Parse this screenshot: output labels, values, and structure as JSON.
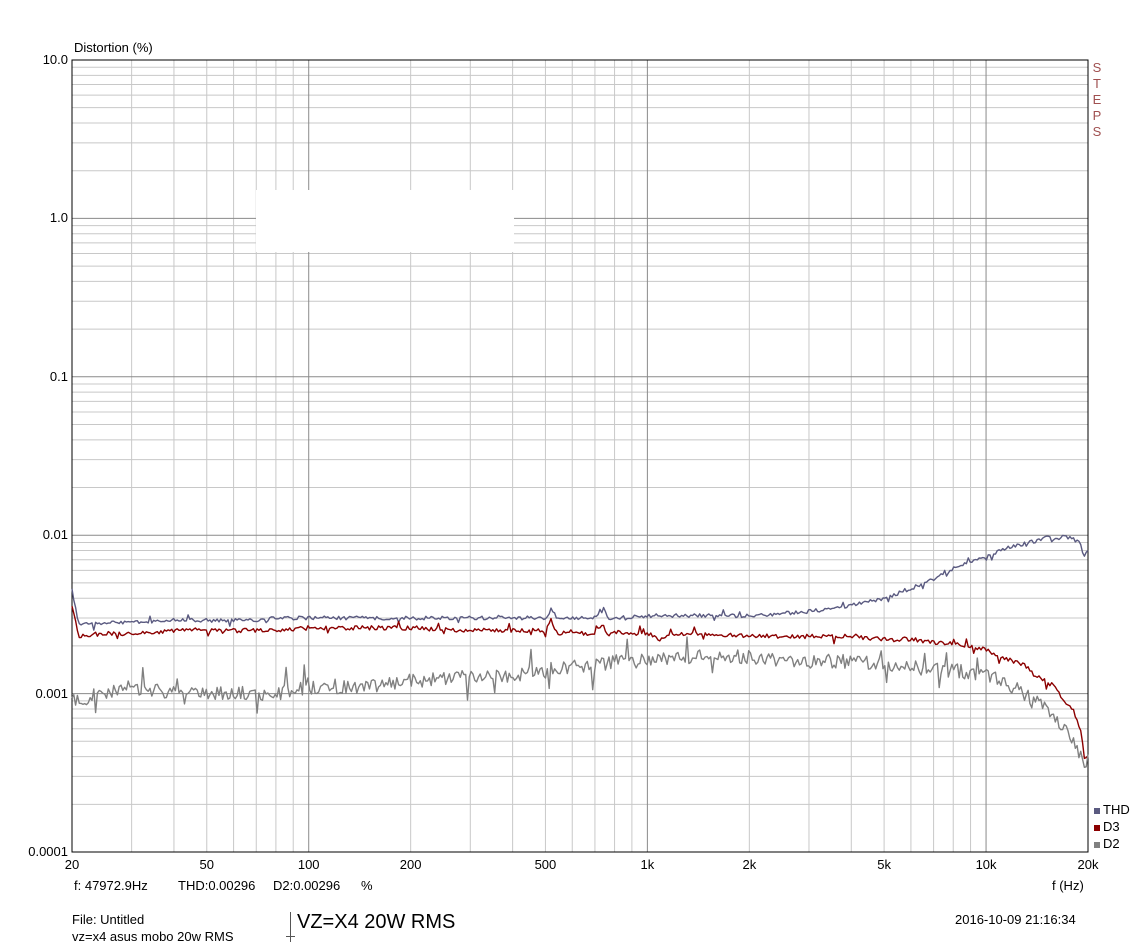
{
  "chart_data": {
    "type": "line",
    "xscale": "log",
    "yscale": "log",
    "xlim": [
      20,
      20000
    ],
    "ylim": [
      0.0001,
      10
    ],
    "ylabel": "Distortion (%)",
    "xlabel": "f (Hz)",
    "x_ticks": [
      20,
      50,
      100,
      200,
      500,
      1000,
      2000,
      5000,
      10000,
      20000
    ],
    "x_tick_labels": [
      "20",
      "50",
      "100",
      "200",
      "500",
      "1k",
      "2k",
      "5k",
      "10k",
      "20k"
    ],
    "y_ticks": [
      0.0001,
      0.001,
      0.01,
      0.1,
      1,
      10
    ],
    "y_tick_labels": [
      "0.0001",
      "0.001",
      "0.01",
      "0.1",
      "1.0",
      "10.0"
    ],
    "grid": true,
    "legend_position": "bottom-right",
    "series": [
      {
        "name": "THD",
        "color": "#5a5a80",
        "points": [
          [
            20,
            0.0045
          ],
          [
            21,
            0.0027
          ],
          [
            25,
            0.0028
          ],
          [
            30,
            0.0028
          ],
          [
            40,
            0.0029
          ],
          [
            50,
            0.0029
          ],
          [
            60,
            0.0029
          ],
          [
            70,
            0.0029
          ],
          [
            80,
            0.003
          ],
          [
            100,
            0.003
          ],
          [
            150,
            0.003
          ],
          [
            200,
            0.003
          ],
          [
            300,
            0.003
          ],
          [
            400,
            0.003
          ],
          [
            500,
            0.003
          ],
          [
            520,
            0.0034
          ],
          [
            540,
            0.003
          ],
          [
            600,
            0.003
          ],
          [
            700,
            0.003
          ],
          [
            740,
            0.0036
          ],
          [
            760,
            0.003
          ],
          [
            800,
            0.003
          ],
          [
            1000,
            0.0031
          ],
          [
            1500,
            0.0031
          ],
          [
            2000,
            0.0031
          ],
          [
            3000,
            0.0033
          ],
          [
            4000,
            0.0036
          ],
          [
            5000,
            0.004
          ],
          [
            6000,
            0.0046
          ],
          [
            7000,
            0.0053
          ],
          [
            8000,
            0.006
          ],
          [
            9000,
            0.0068
          ],
          [
            10000,
            0.0074
          ],
          [
            12000,
            0.0085
          ],
          [
            14000,
            0.0092
          ],
          [
            15000,
            0.0098
          ],
          [
            16000,
            0.0095
          ],
          [
            17000,
            0.0098
          ],
          [
            18000,
            0.0095
          ],
          [
            19000,
            0.0088
          ],
          [
            19500,
            0.0072
          ],
          [
            20000,
            0.008
          ]
        ]
      },
      {
        "name": "D3",
        "color": "#8b0000",
        "points": [
          [
            20,
            0.0035
          ],
          [
            21,
            0.0023
          ],
          [
            25,
            0.0024
          ],
          [
            30,
            0.0024
          ],
          [
            40,
            0.0025
          ],
          [
            50,
            0.0025
          ],
          [
            60,
            0.0025
          ],
          [
            80,
            0.0025
          ],
          [
            100,
            0.0026
          ],
          [
            150,
            0.0026
          ],
          [
            200,
            0.0026
          ],
          [
            300,
            0.0025
          ],
          [
            400,
            0.0025
          ],
          [
            500,
            0.0025
          ],
          [
            520,
            0.0029
          ],
          [
            540,
            0.0024
          ],
          [
            600,
            0.0024
          ],
          [
            700,
            0.0024
          ],
          [
            740,
            0.0028
          ],
          [
            760,
            0.0023
          ],
          [
            800,
            0.0024
          ],
          [
            1000,
            0.0024
          ],
          [
            1100,
            0.0022
          ],
          [
            1200,
            0.0024
          ],
          [
            1500,
            0.0024
          ],
          [
            2000,
            0.0023
          ],
          [
            3000,
            0.0023
          ],
          [
            4000,
            0.0023
          ],
          [
            5000,
            0.0022
          ],
          [
            6000,
            0.0022
          ],
          [
            7000,
            0.0021
          ],
          [
            8000,
            0.0021
          ],
          [
            10000,
            0.0019
          ],
          [
            11000,
            0.0017
          ],
          [
            12000,
            0.0016
          ],
          [
            13000,
            0.0015
          ],
          [
            14000,
            0.0013
          ],
          [
            15000,
            0.0012
          ],
          [
            16000,
            0.0011
          ],
          [
            17000,
            0.0009
          ],
          [
            18000,
            0.0008
          ],
          [
            19000,
            0.0006
          ],
          [
            19500,
            0.0004
          ],
          [
            20000,
            0.0004
          ]
        ]
      },
      {
        "name": "D2",
        "color": "#808080",
        "points": [
          [
            20,
            0.0009
          ],
          [
            25,
            0.001
          ],
          [
            30,
            0.0011
          ],
          [
            40,
            0.001
          ],
          [
            50,
            0.001
          ],
          [
            60,
            0.001
          ],
          [
            80,
            0.001
          ],
          [
            100,
            0.0011
          ],
          [
            150,
            0.0011
          ],
          [
            200,
            0.0012
          ],
          [
            300,
            0.0013
          ],
          [
            400,
            0.0013
          ],
          [
            500,
            0.0014
          ],
          [
            600,
            0.0015
          ],
          [
            700,
            0.0015
          ],
          [
            800,
            0.0016
          ],
          [
            1000,
            0.0016
          ],
          [
            1200,
            0.0017
          ],
          [
            1500,
            0.0017
          ],
          [
            2000,
            0.0017
          ],
          [
            3000,
            0.0016
          ],
          [
            4000,
            0.0016
          ],
          [
            5000,
            0.0015
          ],
          [
            6000,
            0.0015
          ],
          [
            7000,
            0.0014
          ],
          [
            8000,
            0.0014
          ],
          [
            10000,
            0.0013
          ],
          [
            11000,
            0.0012
          ],
          [
            12000,
            0.0011
          ],
          [
            13000,
            0.001
          ],
          [
            14000,
            0.0009
          ],
          [
            15000,
            0.0008
          ],
          [
            16000,
            0.0007
          ],
          [
            17000,
            0.0006
          ],
          [
            18000,
            0.0005
          ],
          [
            19000,
            0.0004
          ],
          [
            19500,
            0.00033
          ],
          [
            20000,
            0.0004
          ]
        ]
      }
    ]
  },
  "axis": {
    "y_title": "Distortion (%)",
    "x_title": "f (Hz)"
  },
  "steps_text": [
    "S",
    "T",
    "E",
    "P",
    "S"
  ],
  "legend": [
    {
      "label": "THD",
      "color": "#5a5a80"
    },
    {
      "label": "D3",
      "color": "#8b0000"
    },
    {
      "label": "D2",
      "color": "#808080"
    }
  ],
  "readout": {
    "freq": "f: 47972.9Hz",
    "thd": "THD:0.00296",
    "d2": "D2:0.00296",
    "unit": "%"
  },
  "footer": {
    "file": "File: Untitled",
    "description": "vz=x4 asus mobo 20w RMS",
    "title": "VZ=X4 20W RMS",
    "timestamp": "2016-10-09 21:16:34"
  }
}
